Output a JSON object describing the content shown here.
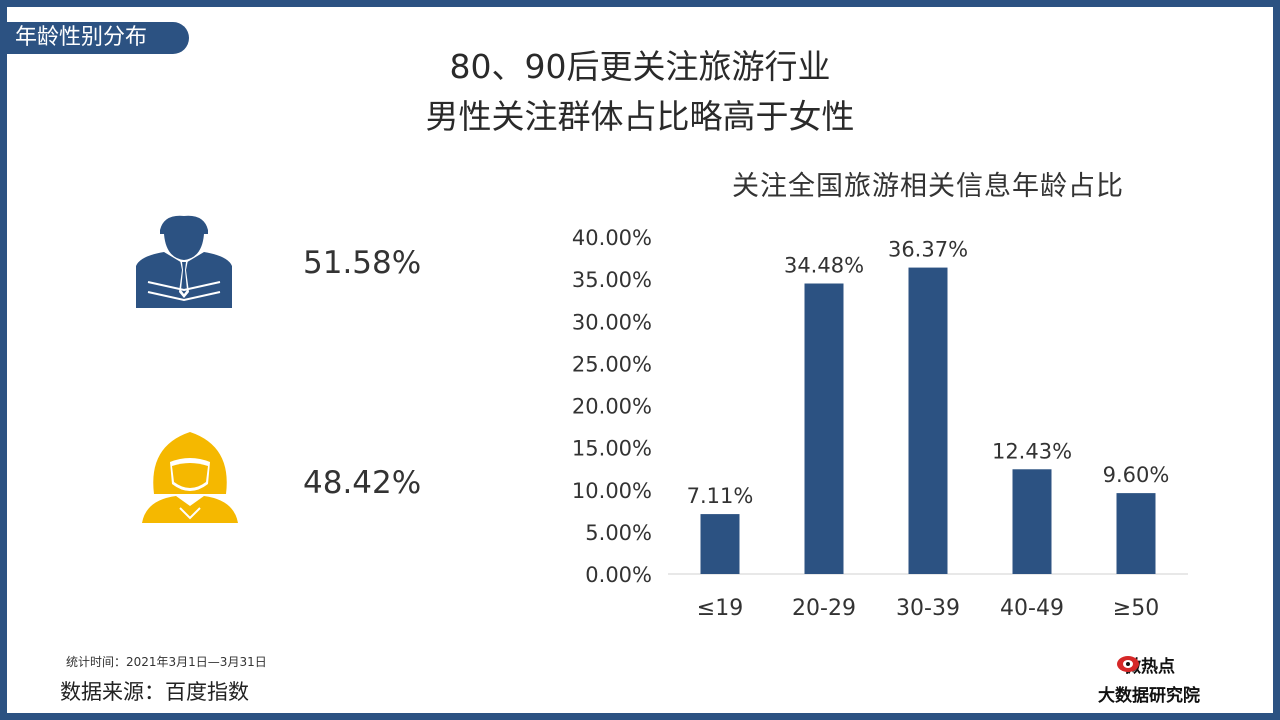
{
  "section_tab": "年龄性别分布",
  "headline": {
    "line1": "80、90后更关注旅游行业",
    "line2": "男性关注群体占比略高于女性"
  },
  "gender": {
    "male_pct": "51.58%",
    "female_pct": "48.42%",
    "male_color": "#2c5282",
    "female_color": "#f5b800"
  },
  "chart_data": {
    "type": "bar",
    "title": "关注全国旅游相关信息年龄占比",
    "categories": [
      "≤19",
      "20-29",
      "30-39",
      "40-49",
      "≥50"
    ],
    "values": [
      7.11,
      34.48,
      36.37,
      12.43,
      9.6
    ],
    "data_labels": [
      "7.11%",
      "34.48%",
      "36.37%",
      "12.43%",
      "9.60%"
    ],
    "ylim": [
      0,
      40
    ],
    "yticks": [
      "0.00%",
      "5.00%",
      "10.00%",
      "15.00%",
      "20.00%",
      "25.00%",
      "30.00%",
      "35.00%",
      "40.00%"
    ],
    "grid": false,
    "bar_color": "#2c5282"
  },
  "footer": {
    "time": "统计时间：2021年3月1日—3月31日",
    "source": "数据来源：百度指数"
  },
  "brand": {
    "line1": "微热点",
    "line2": "大数据研究院"
  }
}
